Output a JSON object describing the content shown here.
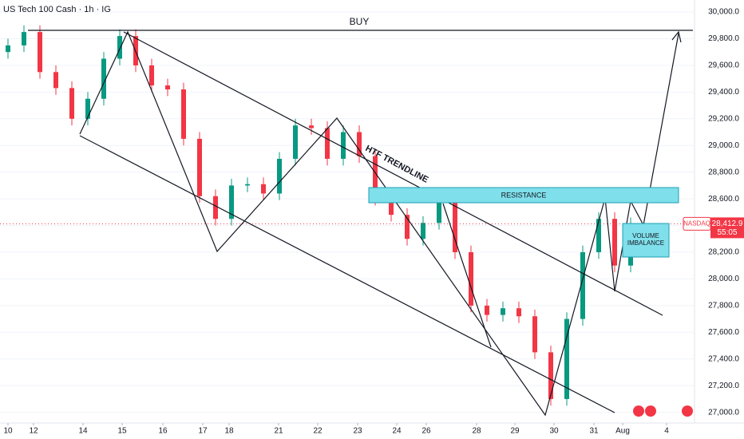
{
  "chart_data": {
    "type": "candlestick",
    "title": "US Tech 100 Cash · 1h · IG",
    "up_color": "#089981",
    "down_color": "#f23645",
    "x": [
      10,
      30,
      50,
      70,
      90,
      110,
      130,
      150,
      170,
      190,
      210,
      230,
      250,
      270,
      290,
      310,
      330,
      350,
      370,
      390,
      410,
      430,
      450,
      470,
      490,
      510,
      530,
      550,
      570,
      590,
      610,
      630,
      650,
      670,
      690,
      710,
      730,
      750,
      770,
      790
    ],
    "open": [
      29700,
      29750,
      29850,
      29550,
      29430,
      29200,
      29350,
      29650,
      29820,
      29600,
      29450,
      29420,
      29050,
      28620,
      28450,
      28700,
      28710,
      28640,
      28900,
      29150,
      29130,
      28900,
      29100,
      28920,
      28600,
      28480,
      28300,
      28420,
      28580,
      28200,
      27800,
      27730,
      27780,
      27720,
      27450,
      27100,
      27700,
      28200,
      28450,
      28100
    ],
    "high": [
      29800,
      29900,
      29900,
      29600,
      29480,
      29400,
      29700,
      29870,
      29870,
      29650,
      29500,
      29470,
      29100,
      28670,
      28750,
      28760,
      28760,
      28950,
      29200,
      29200,
      29180,
      29150,
      29150,
      28970,
      28650,
      28530,
      28470,
      28630,
      28630,
      28250,
      27850,
      27830,
      27830,
      27770,
      27500,
      27750,
      28250,
      28500,
      28500,
      28460
    ],
    "low": [
      29650,
      29700,
      29500,
      29380,
      29150,
      29150,
      29300,
      29600,
      29550,
      29400,
      29370,
      29000,
      28570,
      28400,
      28400,
      28650,
      28590,
      28590,
      28850,
      29080,
      28850,
      28850,
      28870,
      28550,
      28430,
      28250,
      28250,
      28370,
      28150,
      27750,
      27680,
      27680,
      27670,
      27400,
      27050,
      27050,
      27650,
      28150,
      28050,
      28050
    ],
    "close": [
      29750,
      29850,
      29550,
      29430,
      29200,
      29350,
      29650,
      29820,
      29600,
      29450,
      29420,
      29050,
      28620,
      28450,
      28700,
      28710,
      28640,
      28900,
      29150,
      29130,
      28900,
      29100,
      28920,
      28600,
      28480,
      28300,
      28420,
      28580,
      28200,
      27800,
      27730,
      27780,
      27720,
      27450,
      27100,
      27700,
      28200,
      28450,
      28100,
      28412.9
    ],
    "xlim": [
      0,
      870
    ],
    "xticks": [
      {
        "value": 10,
        "label": "10"
      },
      {
        "value": 42,
        "label": "12"
      },
      {
        "value": 104,
        "label": "14"
      },
      {
        "value": 153,
        "label": "15"
      },
      {
        "value": 204,
        "label": "16"
      },
      {
        "value": 254,
        "label": "17"
      },
      {
        "value": 287,
        "label": "18"
      },
      {
        "value": 349,
        "label": "21"
      },
      {
        "value": 398,
        "label": "22"
      },
      {
        "value": 448,
        "label": "23"
      },
      {
        "value": 497,
        "label": "24"
      },
      {
        "value": 534,
        "label": "26"
      },
      {
        "value": 597,
        "label": "28"
      },
      {
        "value": 645,
        "label": "29"
      },
      {
        "value": 694,
        "label": "30"
      },
      {
        "value": 744,
        "label": "31"
      },
      {
        "value": 780,
        "label": "Aug"
      },
      {
        "value": 835,
        "label": "4"
      }
    ],
    "ylim": [
      26920,
      30090
    ],
    "yticks": [
      {
        "value": 27000,
        "label": "27,000.0"
      },
      {
        "value": 27200,
        "label": "27,200.0"
      },
      {
        "value": 27400,
        "label": "27,400.0"
      },
      {
        "value": 27600,
        "label": "27,600.0"
      },
      {
        "value": 27800,
        "label": "27,800.0"
      },
      {
        "value": 28000,
        "label": "28,000.0"
      },
      {
        "value": 28200,
        "label": "28,200.0"
      },
      {
        "value": 28400,
        "label": "28,400.0"
      },
      {
        "value": 28600,
        "label": "28,600.0"
      },
      {
        "value": 28800,
        "label": "28,800.0"
      },
      {
        "value": 29000,
        "label": "29,000.0"
      },
      {
        "value": 29200,
        "label": "29,200.0"
      },
      {
        "value": 29400,
        "label": "29,400.0"
      },
      {
        "value": 29600,
        "label": "29,600.0"
      },
      {
        "value": 29800,
        "label": "29,800.0"
      },
      {
        "value": 30000,
        "label": "30,000.0"
      }
    ],
    "last_price": {
      "value": 28412.9,
      "label": "28,412.9"
    },
    "countdown": "55:05",
    "symbol_tag": "NASDAQ",
    "annotations": {
      "buy": "BUY",
      "trendline": "HTF TRENDLINE",
      "resistance": "RESISTANCE",
      "imbalance_1": "VOLUME",
      "imbalance_2": "IMBALANCE"
    }
  }
}
